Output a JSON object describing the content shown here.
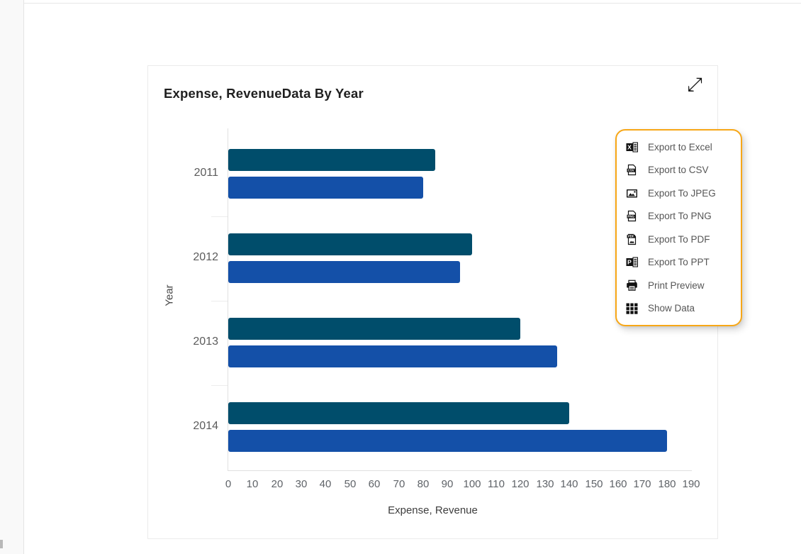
{
  "card": {
    "title": "Expense, RevenueData By Year",
    "expand_glyph": "⤢",
    "expand_icon": "expand-diagonal-arrows-icon"
  },
  "chart_data": {
    "type": "bar",
    "orientation": "horizontal",
    "title": "Expense, RevenueData By Year",
    "categories": [
      "2011",
      "2012",
      "2013",
      "2014"
    ],
    "series": [
      {
        "name": "Expense",
        "color": "#004D6B",
        "values": [
          85,
          100,
          120,
          140
        ]
      },
      {
        "name": "Revenue",
        "color": "#1450A8",
        "values": [
          80,
          95,
          135,
          180
        ]
      }
    ],
    "xlabel": "Expense, Revenue",
    "ylabel": "Year",
    "xlim": [
      0,
      190
    ],
    "xticks": [
      0,
      10,
      20,
      30,
      40,
      50,
      60,
      70,
      80,
      90,
      100,
      110,
      120,
      130,
      140,
      150,
      160,
      170,
      180,
      190
    ],
    "grid": false,
    "legend": "none"
  },
  "menu": {
    "border_color": "#f7a717",
    "items": [
      {
        "label": "Export to Excel",
        "icon": "excel-icon"
      },
      {
        "label": "Export to CSV",
        "icon": "csv-icon"
      },
      {
        "label": "Export To JPEG",
        "icon": "jpeg-icon"
      },
      {
        "label": "Export To PNG",
        "icon": "png-icon"
      },
      {
        "label": "Export To PDF",
        "icon": "pdf-icon"
      },
      {
        "label": "Export To PPT",
        "icon": "ppt-icon"
      },
      {
        "label": "Print Preview",
        "icon": "print-icon"
      },
      {
        "label": "Show Data",
        "icon": "show-data-icon"
      }
    ]
  }
}
